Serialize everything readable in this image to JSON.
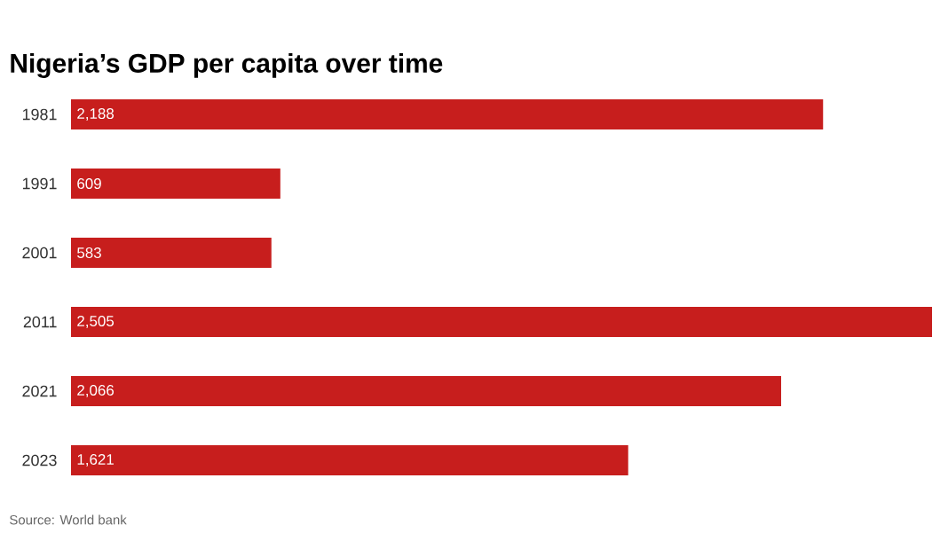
{
  "chart_data": {
    "type": "bar",
    "orientation": "horizontal",
    "title": "Nigeria’s GDP per capita over time",
    "categories": [
      "1981",
      "1991",
      "2001",
      "2011",
      "2021",
      "2023"
    ],
    "values": [
      2188,
      609,
      583,
      2505,
      2066,
      1621
    ],
    "value_labels": [
      "2,188",
      "609",
      "583",
      "2,505",
      "2,066",
      "1,621"
    ],
    "color": "#c71e1d",
    "annotations": [
      "Source: World bank"
    ]
  }
}
